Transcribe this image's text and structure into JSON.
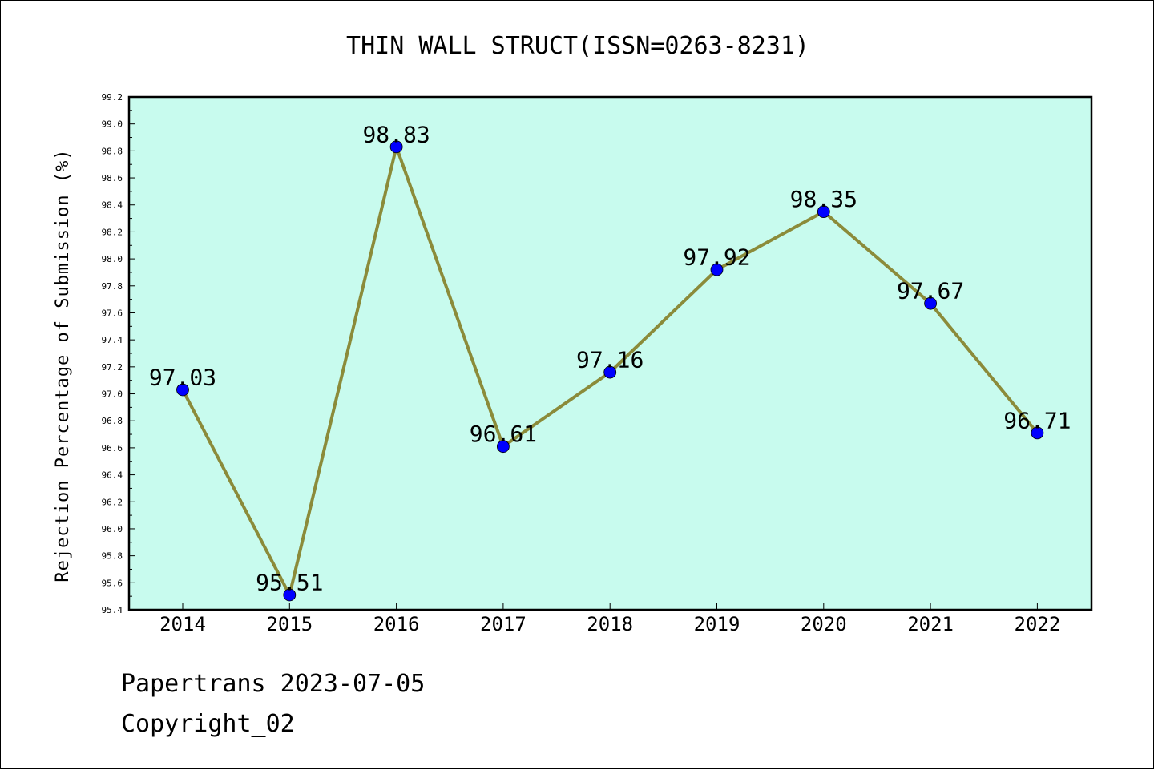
{
  "chart_data": {
    "type": "line",
    "title": "THIN WALL STRUCT(ISSN=0263-8231)",
    "xlabel": "",
    "ylabel": "Rejection Percentage of Submission (%)",
    "categories": [
      "2014",
      "2015",
      "2016",
      "2017",
      "2018",
      "2019",
      "2020",
      "2021",
      "2022"
    ],
    "series": [
      {
        "values": [
          97.03,
          95.51,
          98.83,
          96.61,
          97.16,
          97.92,
          98.35,
          97.67,
          96.71
        ]
      }
    ],
    "data_labels": [
      "97.03",
      "95.51",
      "98.83",
      "96.61",
      "97.16",
      "97.92",
      "98.35",
      "97.67",
      "96.71"
    ],
    "ylim": [
      95.4,
      99.2
    ],
    "yticks": [
      "95.4",
      "95.6",
      "95.8",
      "96.0",
      "96.2",
      "96.4",
      "96.6",
      "96.8",
      "97.0",
      "97.2",
      "97.4",
      "97.6",
      "97.8",
      "98.0",
      "98.2",
      "98.4",
      "98.6",
      "98.8",
      "99.0",
      "99.2"
    ],
    "grid": false,
    "colors": {
      "plot_background": "#c8fbee",
      "line": "#8b8b3a",
      "marker": "#0000ff"
    }
  },
  "footer": {
    "line1": "Papertrans 2023-07-05",
    "line2": "Copyright_02"
  }
}
